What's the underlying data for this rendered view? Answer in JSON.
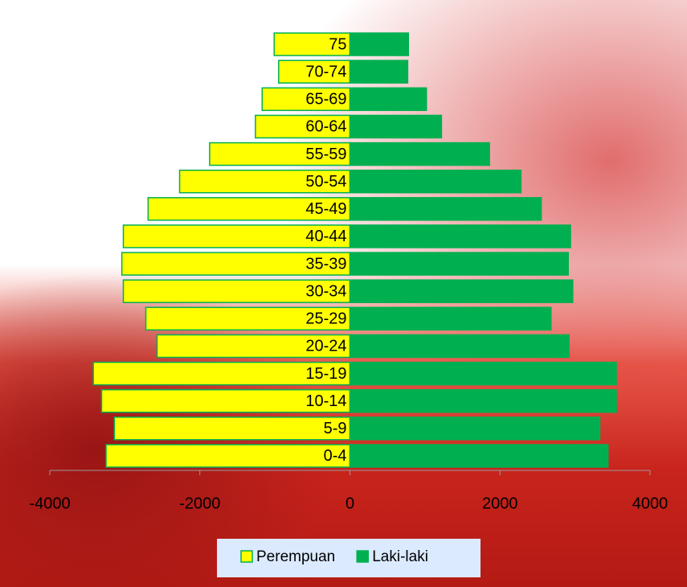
{
  "chart_data": {
    "type": "pyramid",
    "categories": [
      "0-4",
      "5-9",
      "10-14",
      "15-19",
      "20-24",
      "25-29",
      "30-34",
      "35-39",
      "40-44",
      "45-49",
      "50-54",
      "55-59",
      "60-64",
      "65-69",
      "70-74",
      "75"
    ],
    "series": [
      {
        "name": "Perempuan",
        "color": "#ffff00",
        "values": [
          -3250,
          -3140,
          -3310,
          -3420,
          -2570,
          -2720,
          -3020,
          -3040,
          -3020,
          -2690,
          -2270,
          -1870,
          -1260,
          -1170,
          -950,
          -1010
        ]
      },
      {
        "name": "Laki-laki",
        "color": "#00b050",
        "values": [
          3440,
          3330,
          3550,
          3550,
          2920,
          2680,
          2970,
          2910,
          2940,
          2550,
          2280,
          1860,
          1220,
          1020,
          770,
          780
        ]
      }
    ],
    "xlim": [
      -4000,
      4000
    ],
    "xticks": [
      -4000,
      -2000,
      0,
      2000,
      4000
    ],
    "legend": "bottom"
  }
}
